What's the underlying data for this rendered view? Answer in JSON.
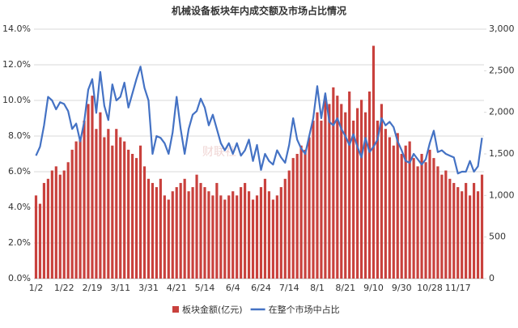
{
  "chart_data": {
    "type": "combo",
    "title": "机械设备板块年内成交额及市场占比情况",
    "watermark": "财联社",
    "categories": [
      "1/2",
      null,
      null,
      null,
      null,
      null,
      null,
      "1/22",
      null,
      null,
      null,
      null,
      null,
      null,
      "2/19",
      null,
      null,
      null,
      null,
      null,
      null,
      "3/11",
      null,
      null,
      null,
      null,
      null,
      null,
      "3/31",
      null,
      null,
      null,
      null,
      null,
      null,
      "4/21",
      null,
      null,
      null,
      null,
      null,
      null,
      "5/14",
      null,
      null,
      null,
      null,
      null,
      null,
      "6/4",
      null,
      null,
      null,
      null,
      null,
      null,
      "6/24",
      null,
      null,
      null,
      null,
      null,
      null,
      "7/14",
      null,
      null,
      null,
      null,
      null,
      null,
      "8/1",
      null,
      null,
      null,
      null,
      null,
      null,
      "8/21",
      null,
      null,
      null,
      null,
      null,
      null,
      "9/10",
      null,
      null,
      null,
      null,
      null,
      null,
      "9/30",
      null,
      null,
      null,
      null,
      null,
      null,
      "10/28",
      null,
      null,
      null,
      null,
      null,
      null,
      "11/17",
      null,
      null,
      null,
      null,
      null,
      null
    ],
    "series": [
      {
        "name": "板块金额(亿元)",
        "type": "bar",
        "axis": "y2",
        "color": "#c9413d",
        "values": [
          1000,
          900,
          1150,
          1200,
          1300,
          1350,
          1250,
          1300,
          1400,
          1550,
          1650,
          1700,
          1900,
          2100,
          2200,
          1800,
          2000,
          1700,
          1800,
          1600,
          1800,
          1700,
          1650,
          1550,
          1500,
          1450,
          1600,
          1350,
          1200,
          1150,
          1100,
          1200,
          1000,
          950,
          1050,
          1100,
          1150,
          1200,
          1050,
          1100,
          1250,
          1150,
          1100,
          1050,
          1000,
          1150,
          1000,
          950,
          1000,
          1050,
          1000,
          1100,
          1150,
          1050,
          950,
          1000,
          1100,
          1200,
          1050,
          950,
          1000,
          1100,
          1200,
          1300,
          1450,
          1500,
          1600,
          1550,
          1700,
          1900,
          2000,
          1900,
          2200,
          2100,
          2300,
          2200,
          2100,
          2000,
          2250,
          1900,
          2050,
          2150,
          2000,
          2250,
          2800,
          1900,
          2100,
          1800,
          1700,
          1600,
          1750,
          1500,
          1600,
          1650,
          1450,
          1350,
          1500,
          1400,
          1550,
          1450,
          1350,
          1250,
          1300,
          1200,
          1150,
          1100,
          1050,
          1150,
          1000,
          1150,
          1050,
          1250
        ]
      },
      {
        "name": "在整个市场中占比",
        "type": "line",
        "axis": "y",
        "color": "#4472c4",
        "values": [
          6.9,
          7.4,
          8.6,
          10.2,
          10.0,
          9.5,
          9.9,
          9.8,
          9.4,
          8.4,
          8.7,
          7.7,
          8.8,
          10.6,
          11.2,
          9.3,
          11.6,
          9.7,
          8.9,
          10.9,
          10.0,
          10.2,
          11.0,
          9.6,
          10.4,
          11.2,
          11.9,
          10.7,
          10.0,
          7.0,
          8.0,
          7.9,
          7.6,
          7.0,
          8.2,
          10.2,
          8.4,
          7.0,
          8.4,
          9.2,
          9.4,
          10.1,
          9.6,
          8.6,
          9.2,
          8.4,
          7.6,
          7.2,
          7.6,
          7.0,
          7.6,
          6.9,
          7.2,
          7.8,
          6.6,
          7.5,
          6.1,
          7.0,
          6.6,
          6.4,
          7.2,
          6.8,
          6.5,
          7.5,
          9.0,
          7.8,
          7.3,
          7.0,
          8.0,
          9.0,
          10.8,
          9.0,
          10.4,
          8.8,
          8.6,
          9.0,
          8.4,
          8.0,
          7.5,
          8.1,
          7.4,
          6.8,
          7.9,
          7.1,
          7.4,
          7.8,
          9.0,
          8.6,
          8.8,
          8.5,
          7.7,
          7.2,
          6.6,
          6.5,
          7.0,
          6.7,
          6.4,
          6.7,
          7.6,
          8.3,
          7.1,
          7.2,
          7.0,
          6.9,
          6.8,
          5.9,
          6.0,
          6.0,
          6.6,
          6.0,
          6.3,
          7.9
        ]
      }
    ],
    "ylim": [
      0,
      14
    ],
    "yticks": [
      {
        "value": 0,
        "label": "0.0%"
      },
      {
        "value": 2,
        "label": "2.0%"
      },
      {
        "value": 4,
        "label": "4.0%"
      },
      {
        "value": 6,
        "label": "6.0%"
      },
      {
        "value": 8,
        "label": "8.0%"
      },
      {
        "value": 10,
        "label": "10.0%"
      },
      {
        "value": 12,
        "label": "12.0%"
      },
      {
        "value": 14,
        "label": "14.0%"
      }
    ],
    "y2lim": [
      0,
      3000
    ],
    "y2ticks": [
      0,
      500,
      {
        "value": 1000,
        "label": "1,000"
      },
      {
        "value": 1500,
        "label": "1,500"
      },
      {
        "value": 2000,
        "label": "2,000"
      },
      {
        "value": 2500,
        "label": "2,500"
      },
      {
        "value": 3000,
        "label": "3,000"
      }
    ],
    "grid": true
  }
}
